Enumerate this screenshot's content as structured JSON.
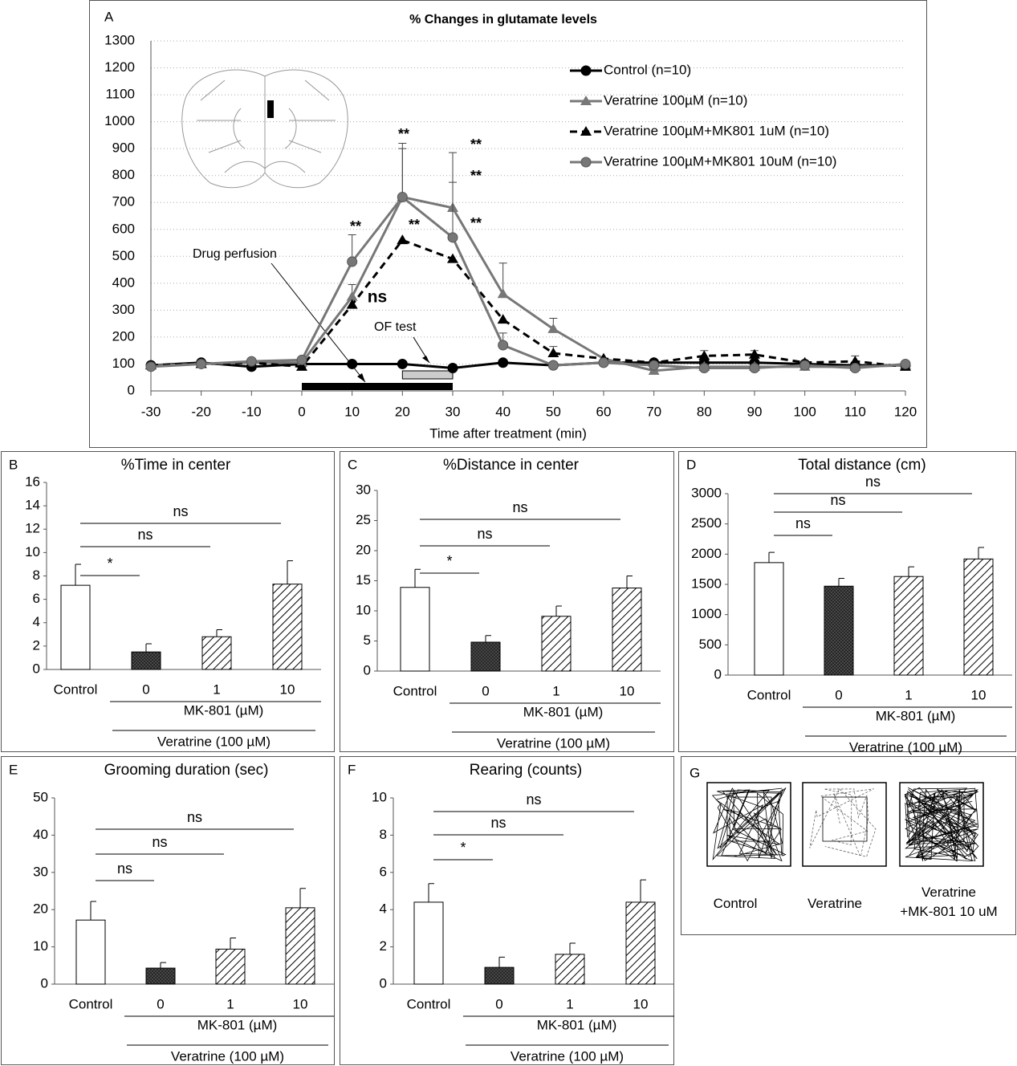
{
  "chart_data": [
    {
      "type": "line",
      "panel": "A",
      "title": "% Changes in glutamate levels",
      "x_label": "Time after treatment (min)",
      "x": [
        -30,
        -20,
        -10,
        0,
        10,
        20,
        30,
        40,
        50,
        60,
        70,
        80,
        90,
        100,
        110,
        120
      ],
      "xlim": [
        -30,
        120
      ],
      "xticks": [
        -30,
        -20,
        -10,
        0,
        10,
        20,
        30,
        40,
        50,
        60,
        70,
        80,
        90,
        100,
        110,
        120
      ],
      "ylim": [
        0,
        1300
      ],
      "yticks": [
        0,
        100,
        200,
        300,
        400,
        500,
        600,
        700,
        800,
        900,
        1000,
        1100,
        1200,
        1300
      ],
      "grid": true,
      "legend": "upper right",
      "series": [
        {
          "name": "Control (n=10)",
          "color": "#000000",
          "marker": "circle",
          "dash": false,
          "values": [
            95,
            105,
            90,
            100,
            100,
            100,
            85,
            105,
            95,
            105,
            105,
            105,
            105,
            100,
            95,
            95
          ],
          "errors": [
            null,
            null,
            null,
            null,
            null,
            null,
            null,
            null,
            null,
            null,
            null,
            null,
            null,
            null,
            null,
            null
          ]
        },
        {
          "name": "Veratrine 100µM (n=10)",
          "color": "#777777",
          "marker": "triangle",
          "dash": false,
          "values": [
            95,
            100,
            105,
            105,
            350,
            720,
            680,
            360,
            230,
            120,
            75,
            90,
            90,
            90,
            90,
            95
          ],
          "errors": [
            null,
            null,
            null,
            null,
            45,
            200,
            205,
            115,
            40,
            null,
            null,
            null,
            null,
            null,
            null,
            null
          ]
        },
        {
          "name": "Veratrine 100µM+MK801 1uM (n=10)",
          "color": "#000000",
          "marker": "triangle",
          "dash": true,
          "values": [
            95,
            100,
            105,
            90,
            320,
            560,
            490,
            265,
            140,
            120,
            105,
            130,
            135,
            105,
            110,
            90
          ],
          "errors": [
            null,
            null,
            null,
            null,
            null,
            null,
            null,
            null,
            25,
            null,
            null,
            20,
            15,
            null,
            20,
            null
          ]
        },
        {
          "name": "Veratrine 100µM+MK801 10uM (n=10)",
          "color": "#777777",
          "marker": "circle",
          "dash": false,
          "values": [
            90,
            100,
            110,
            115,
            480,
            720,
            570,
            170,
            95,
            105,
            95,
            85,
            85,
            95,
            85,
            100
          ],
          "errors": [
            null,
            null,
            null,
            null,
            100,
            180,
            205,
            45,
            null,
            null,
            null,
            null,
            null,
            null,
            null,
            null
          ]
        }
      ],
      "annotations": [
        "**",
        "**",
        "**",
        "**",
        "**",
        "**",
        "ns",
        "Drug perfusion",
        "OF test"
      ]
    },
    {
      "type": "bar",
      "panel": "B",
      "title": "%Time in center",
      "categories": [
        "Control",
        "0",
        "1",
        "10"
      ],
      "values": [
        7.2,
        1.5,
        2.8,
        7.3
      ],
      "errors": [
        1.8,
        0.7,
        0.6,
        2.0
      ],
      "patterns": [
        "none",
        "dense",
        "diagonal",
        "diagonal"
      ],
      "ylim": [
        0,
        16
      ],
      "yticks": [
        0,
        2,
        4,
        6,
        8,
        10,
        12,
        14,
        16
      ],
      "comparisons": [
        "*",
        "ns",
        "ns"
      ],
      "group_labels": [
        "MK-801 (µM)",
        "Veratrine (100 µM)"
      ]
    },
    {
      "type": "bar",
      "panel": "C",
      "title": "%Distance in center",
      "categories": [
        "Control",
        "0",
        "1",
        "10"
      ],
      "values": [
        13.9,
        4.8,
        9.1,
        13.8
      ],
      "errors": [
        3.0,
        1.1,
        1.7,
        2.0
      ],
      "patterns": [
        "none",
        "dense",
        "diagonal",
        "diagonal"
      ],
      "ylim": [
        0,
        30
      ],
      "yticks": [
        0,
        5,
        10,
        15,
        20,
        25,
        30
      ],
      "comparisons": [
        "*",
        "ns",
        "ns"
      ],
      "group_labels": [
        "MK-801 (µM)",
        "Veratrine (100 µM)"
      ]
    },
    {
      "type": "bar",
      "panel": "D",
      "title": "Total distance (cm)",
      "categories": [
        "Control",
        "0",
        "1",
        "10"
      ],
      "values": [
        1860,
        1470,
        1630,
        1920
      ],
      "errors": [
        170,
        130,
        160,
        190
      ],
      "patterns": [
        "none",
        "dense",
        "diagonal",
        "diagonal"
      ],
      "ylim": [
        0,
        3000
      ],
      "yticks": [
        0,
        500,
        1000,
        1500,
        2000,
        2500,
        3000
      ],
      "comparisons": [
        "ns",
        "ns",
        "ns"
      ],
      "group_labels": [
        "MK-801 (µM)",
        "Veratrine (100 µM)"
      ]
    },
    {
      "type": "bar",
      "panel": "E",
      "title": "Grooming duration (sec)",
      "categories": [
        "Control",
        "0",
        "1",
        "10"
      ],
      "values": [
        17.2,
        4.3,
        9.4,
        20.5
      ],
      "errors": [
        5.0,
        1.5,
        3.0,
        5.2
      ],
      "patterns": [
        "none",
        "dense",
        "diagonal",
        "diagonal"
      ],
      "ylim": [
        0,
        50
      ],
      "yticks": [
        0,
        10,
        20,
        30,
        40,
        50
      ],
      "comparisons": [
        "ns",
        "ns",
        "ns"
      ],
      "group_labels": [
        "MK-801 (µM)",
        "Veratrine (100 µM)"
      ]
    },
    {
      "type": "bar",
      "panel": "F",
      "title": "Rearing (counts)",
      "categories": [
        "Control",
        "0",
        "1",
        "10"
      ],
      "values": [
        4.4,
        0.9,
        1.6,
        4.4
      ],
      "errors": [
        1.0,
        0.55,
        0.6,
        1.2
      ],
      "patterns": [
        "none",
        "dense",
        "diagonal",
        "diagonal"
      ],
      "ylim": [
        0,
        10
      ],
      "yticks": [
        0,
        2,
        4,
        6,
        8,
        10
      ],
      "comparisons": [
        "*",
        "ns",
        "ns"
      ],
      "group_labels": [
        "MK-801 (µM)",
        "Veratrine (100 µM)"
      ]
    }
  ],
  "panel_g": {
    "panel": "G",
    "labels": [
      "Control",
      "Veratrine",
      "Veratrine\n+MK-801 10 uM"
    ]
  }
}
